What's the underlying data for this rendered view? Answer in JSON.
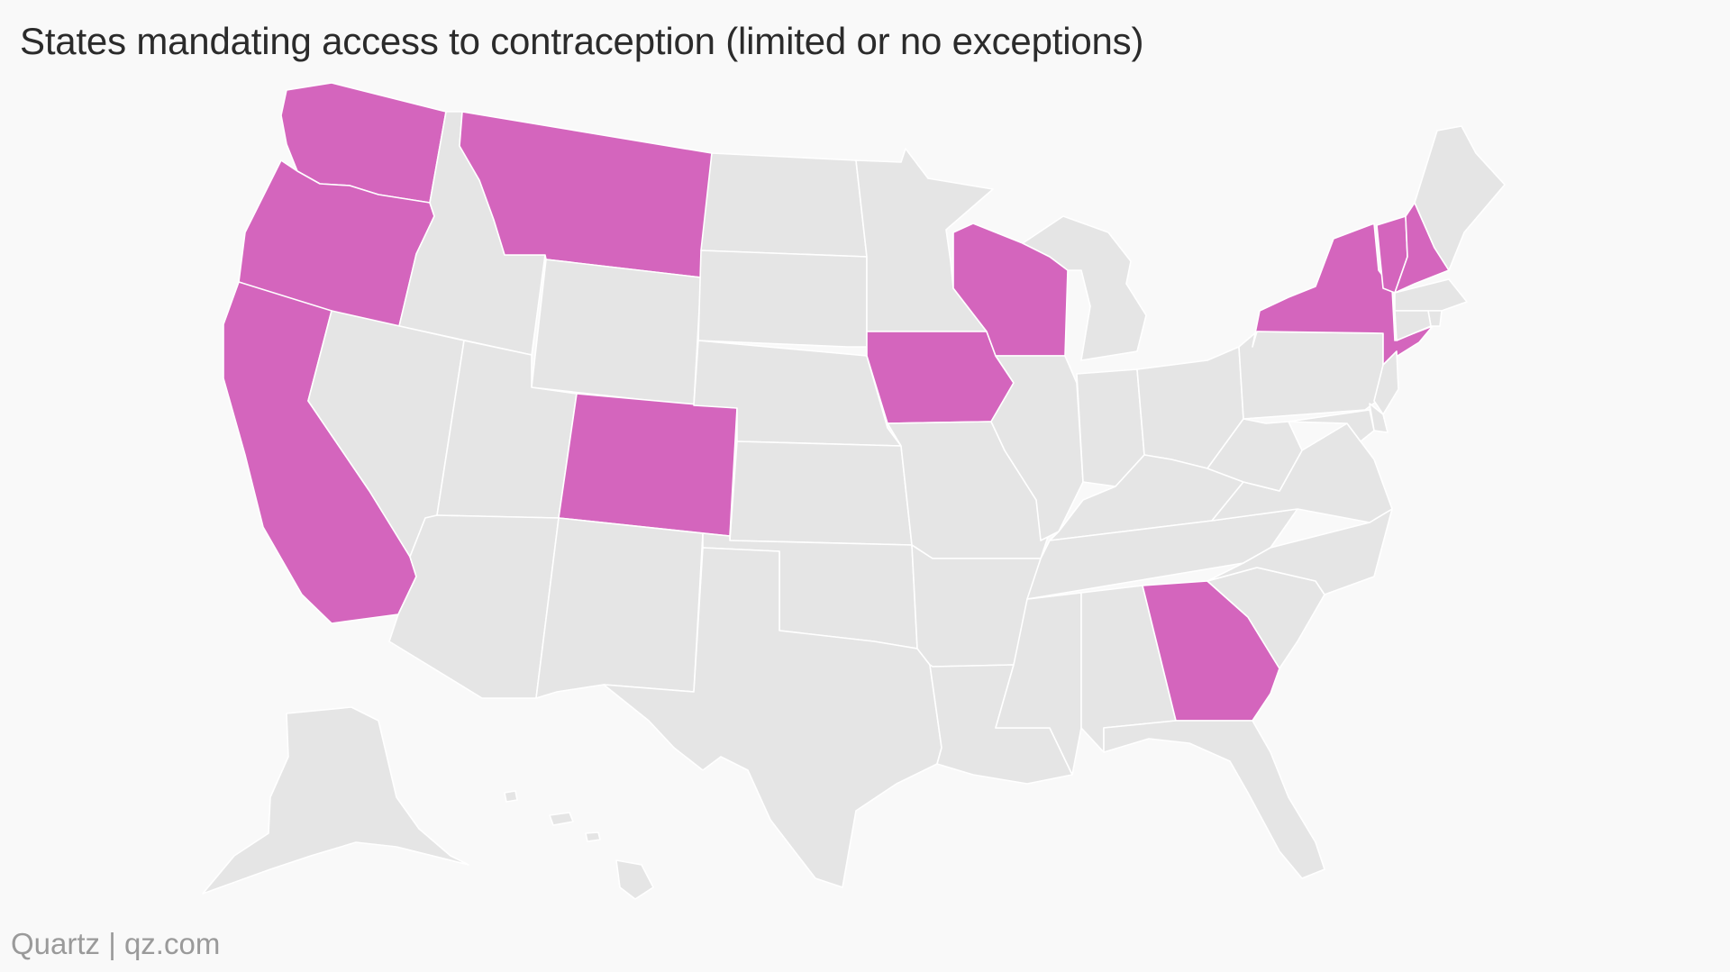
{
  "title": "States mandating access to contraception (limited or no exceptions)",
  "source": "Quartz | qz.com",
  "colors": {
    "background": "#f9f9f9",
    "highlight": "#d465bd",
    "base": "#e5e5e5",
    "border": "#ffffff",
    "title": "#2b2b2b",
    "source": "#9a9a9a"
  },
  "highlighted_states": [
    "WA",
    "OR",
    "CA",
    "MT",
    "CO",
    "IA",
    "WI",
    "NY",
    "VT",
    "NH",
    "GA"
  ],
  "states": [
    "WA",
    "OR",
    "CA",
    "ID",
    "NV",
    "MT",
    "WY",
    "UT",
    "AZ",
    "CO",
    "NM",
    "ND",
    "SD",
    "NE",
    "KS",
    "OK",
    "TX",
    "MN",
    "IA",
    "MO",
    "AR",
    "LA",
    "WI",
    "IL",
    "MI",
    "IN",
    "OH",
    "KY",
    "TN",
    "MS",
    "AL",
    "GA",
    "FL",
    "SC",
    "NC",
    "VA",
    "WV",
    "PA",
    "NY",
    "VT",
    "NH",
    "ME",
    "MA",
    "RI",
    "CT",
    "NJ",
    "DE",
    "MD",
    "AK",
    "HI"
  ]
}
